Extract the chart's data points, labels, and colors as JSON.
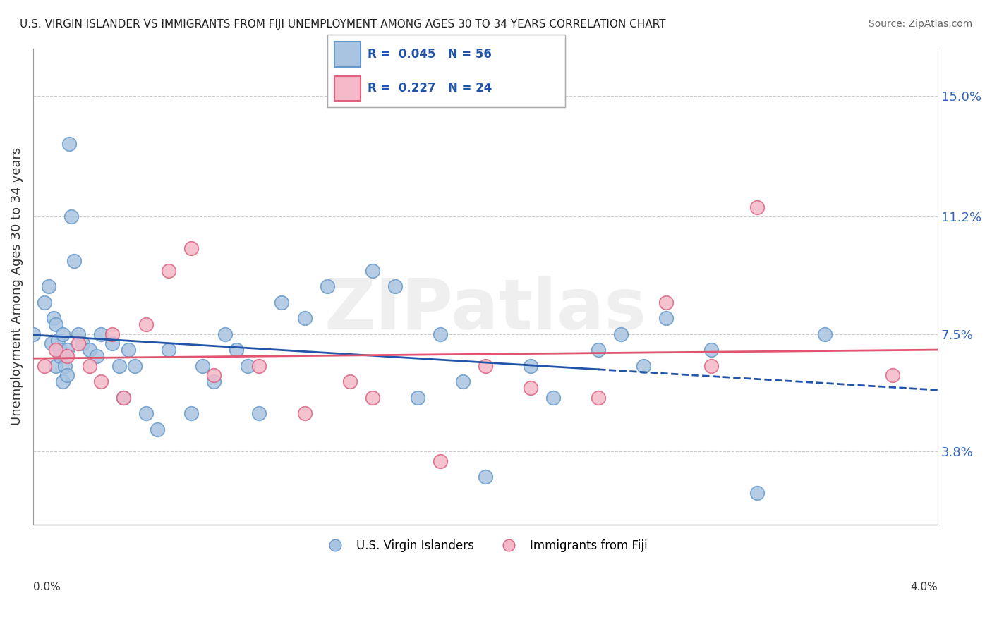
{
  "title": "U.S. VIRGIN ISLANDER VS IMMIGRANTS FROM FIJI UNEMPLOYMENT AMONG AGES 30 TO 34 YEARS CORRELATION CHART",
  "source": "Source: ZipAtlas.com",
  "ylabel": "Unemployment Among Ages 30 to 34 years",
  "y_tick_values": [
    3.8,
    7.5,
    11.2,
    15.0
  ],
  "xlim": [
    0.0,
    4.0
  ],
  "ylim": [
    1.5,
    16.5
  ],
  "blue_R": 0.045,
  "blue_N": 56,
  "pink_R": 0.227,
  "pink_N": 24,
  "blue_label": "U.S. Virgin Islanders",
  "pink_label": "Immigrants from Fiji",
  "blue_color": "#a8c4e0",
  "blue_edge": "#6699cc",
  "pink_color": "#f4b8c8",
  "pink_edge": "#e06080",
  "blue_line_color": "#2255aa",
  "pink_line_color": "#e05570",
  "blue_x": [
    0.0,
    0.05,
    0.07,
    0.08,
    0.09,
    0.1,
    0.1,
    0.11,
    0.12,
    0.12,
    0.13,
    0.13,
    0.14,
    0.15,
    0.15,
    0.16,
    0.17,
    0.18,
    0.2,
    0.22,
    0.25,
    0.28,
    0.3,
    0.35,
    0.38,
    0.4,
    0.42,
    0.45,
    0.5,
    0.55,
    0.6,
    0.7,
    0.75,
    0.8,
    0.85,
    0.9,
    0.95,
    1.0,
    1.1,
    1.2,
    1.3,
    1.5,
    1.6,
    1.7,
    1.8,
    1.9,
    2.0,
    2.2,
    2.3,
    2.5,
    2.6,
    2.7,
    2.8,
    3.0,
    3.2,
    3.5
  ],
  "blue_y": [
    7.5,
    8.5,
    9.0,
    7.2,
    8.0,
    7.8,
    6.5,
    7.3,
    7.0,
    6.8,
    7.5,
    6.0,
    6.5,
    6.2,
    7.0,
    13.5,
    11.2,
    9.8,
    7.5,
    7.2,
    7.0,
    6.8,
    7.5,
    7.2,
    6.5,
    5.5,
    7.0,
    6.5,
    5.0,
    4.5,
    7.0,
    5.0,
    6.5,
    6.0,
    7.5,
    7.0,
    6.5,
    5.0,
    8.5,
    8.0,
    9.0,
    9.5,
    9.0,
    5.5,
    7.5,
    6.0,
    3.0,
    6.5,
    5.5,
    7.0,
    7.5,
    6.5,
    8.0,
    7.0,
    2.5,
    7.5
  ],
  "pink_x": [
    0.05,
    0.1,
    0.15,
    0.2,
    0.25,
    0.3,
    0.35,
    0.4,
    0.5,
    0.6,
    0.7,
    0.8,
    1.0,
    1.2,
    1.4,
    1.5,
    1.8,
    2.0,
    2.2,
    2.5,
    2.8,
    3.0,
    3.2,
    3.8
  ],
  "pink_y": [
    6.5,
    7.0,
    6.8,
    7.2,
    6.5,
    6.0,
    7.5,
    5.5,
    7.8,
    9.5,
    10.2,
    6.2,
    6.5,
    5.0,
    6.0,
    5.5,
    3.5,
    6.5,
    5.8,
    5.5,
    8.5,
    6.5,
    11.5,
    6.2
  ]
}
